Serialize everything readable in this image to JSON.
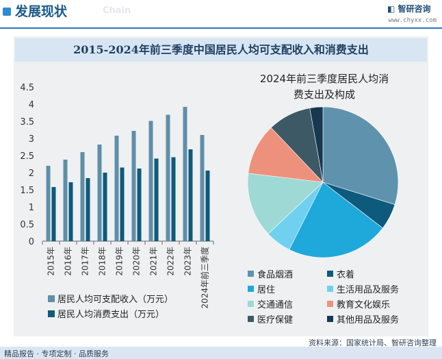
{
  "header": {
    "title": "发展现状",
    "subtitle": "Chain",
    "logo_text": "智研咨询",
    "url": "www.chyxx.com"
  },
  "main_title": "2015-2024年前三季度中国居民人均可支配收入和消费支出",
  "footer": {
    "left_text": "精品报告 · 专项定制 · 品质服务",
    "source": "资料来源：国家统计局、智研咨询整理"
  },
  "chart_data": [
    {
      "type": "bar",
      "categories": [
        "2015年",
        "2016年",
        "2017年",
        "2018年",
        "2019年",
        "2020年",
        "2021年",
        "2022年",
        "2023年",
        "2024年前三季度"
      ],
      "series": [
        {
          "name": "居民人均可支配收入（万元）",
          "color": "#5f8fa8",
          "values": [
            2.2,
            2.38,
            2.6,
            2.82,
            3.08,
            3.22,
            3.51,
            3.69,
            3.92,
            3.1
          ]
        },
        {
          "name": "居民人均消费支出（万元）",
          "color": "#0f5a7a",
          "values": [
            1.58,
            1.72,
            1.84,
            2.0,
            2.15,
            2.12,
            2.41,
            2.45,
            2.68,
            2.06
          ]
        }
      ],
      "y_ticks": [
        "0",
        "0.5",
        "1",
        "1.5",
        "2",
        "2.5",
        "3",
        "3.5",
        "4",
        "4.5"
      ],
      "ylim": [
        0,
        4.5
      ],
      "legend_position": "bottom-left"
    },
    {
      "type": "pie",
      "title": "2024年前三季度居民人均消费支出及构成",
      "title_lines": [
        "2024年前三季度居民人均消",
        "费支出及构成"
      ],
      "labels": [
        "食品烟酒",
        "衣着",
        "居住",
        "生活用品及服务",
        "交通通信",
        "教育文化娱乐",
        "医疗保健",
        "其他用品及服务"
      ],
      "values": [
        29.8,
        5.6,
        22.0,
        5.6,
        13.9,
        11.0,
        9.3,
        2.8
      ],
      "colors": [
        "#5f93ad",
        "#0e5a7d",
        "#1fa8da",
        "#6fd0f0",
        "#9ed9d6",
        "#ee917c",
        "#3e5966",
        "#17384f"
      ],
      "legend_position": "bottom"
    }
  ]
}
